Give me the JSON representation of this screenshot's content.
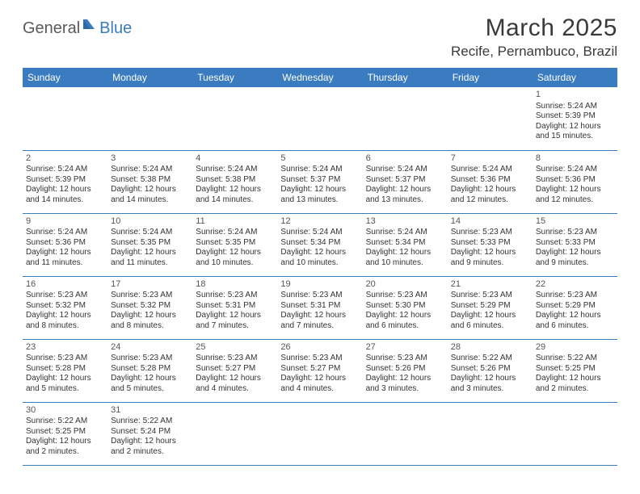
{
  "brand": {
    "part1": "General",
    "part2": "Blue"
  },
  "title": "March 2025",
  "location": "Recife, Pernambuco, Brazil",
  "colors": {
    "header_bg": "#3b7bbf",
    "header_text": "#ffffff",
    "border": "#3b7bbf",
    "body_text": "#333333",
    "title_text": "#3a3a3a",
    "brand_gray": "#5a5a5a",
    "brand_blue": "#3b7bbf",
    "background": "#ffffff"
  },
  "typography": {
    "title_fontsize": 30,
    "location_fontsize": 17,
    "header_fontsize": 12,
    "cell_fontsize": 10
  },
  "columns": [
    "Sunday",
    "Monday",
    "Tuesday",
    "Wednesday",
    "Thursday",
    "Friday",
    "Saturday"
  ],
  "weeks": [
    [
      null,
      null,
      null,
      null,
      null,
      null,
      {
        "n": "1",
        "sr": "Sunrise: 5:24 AM",
        "ss": "Sunset: 5:39 PM",
        "d1": "Daylight: 12 hours",
        "d2": "and 15 minutes."
      }
    ],
    [
      {
        "n": "2",
        "sr": "Sunrise: 5:24 AM",
        "ss": "Sunset: 5:39 PM",
        "d1": "Daylight: 12 hours",
        "d2": "and 14 minutes."
      },
      {
        "n": "3",
        "sr": "Sunrise: 5:24 AM",
        "ss": "Sunset: 5:38 PM",
        "d1": "Daylight: 12 hours",
        "d2": "and 14 minutes."
      },
      {
        "n": "4",
        "sr": "Sunrise: 5:24 AM",
        "ss": "Sunset: 5:38 PM",
        "d1": "Daylight: 12 hours",
        "d2": "and 14 minutes."
      },
      {
        "n": "5",
        "sr": "Sunrise: 5:24 AM",
        "ss": "Sunset: 5:37 PM",
        "d1": "Daylight: 12 hours",
        "d2": "and 13 minutes."
      },
      {
        "n": "6",
        "sr": "Sunrise: 5:24 AM",
        "ss": "Sunset: 5:37 PM",
        "d1": "Daylight: 12 hours",
        "d2": "and 13 minutes."
      },
      {
        "n": "7",
        "sr": "Sunrise: 5:24 AM",
        "ss": "Sunset: 5:36 PM",
        "d1": "Daylight: 12 hours",
        "d2": "and 12 minutes."
      },
      {
        "n": "8",
        "sr": "Sunrise: 5:24 AM",
        "ss": "Sunset: 5:36 PM",
        "d1": "Daylight: 12 hours",
        "d2": "and 12 minutes."
      }
    ],
    [
      {
        "n": "9",
        "sr": "Sunrise: 5:24 AM",
        "ss": "Sunset: 5:36 PM",
        "d1": "Daylight: 12 hours",
        "d2": "and 11 minutes."
      },
      {
        "n": "10",
        "sr": "Sunrise: 5:24 AM",
        "ss": "Sunset: 5:35 PM",
        "d1": "Daylight: 12 hours",
        "d2": "and 11 minutes."
      },
      {
        "n": "11",
        "sr": "Sunrise: 5:24 AM",
        "ss": "Sunset: 5:35 PM",
        "d1": "Daylight: 12 hours",
        "d2": "and 10 minutes."
      },
      {
        "n": "12",
        "sr": "Sunrise: 5:24 AM",
        "ss": "Sunset: 5:34 PM",
        "d1": "Daylight: 12 hours",
        "d2": "and 10 minutes."
      },
      {
        "n": "13",
        "sr": "Sunrise: 5:24 AM",
        "ss": "Sunset: 5:34 PM",
        "d1": "Daylight: 12 hours",
        "d2": "and 10 minutes."
      },
      {
        "n": "14",
        "sr": "Sunrise: 5:23 AM",
        "ss": "Sunset: 5:33 PM",
        "d1": "Daylight: 12 hours",
        "d2": "and 9 minutes."
      },
      {
        "n": "15",
        "sr": "Sunrise: 5:23 AM",
        "ss": "Sunset: 5:33 PM",
        "d1": "Daylight: 12 hours",
        "d2": "and 9 minutes."
      }
    ],
    [
      {
        "n": "16",
        "sr": "Sunrise: 5:23 AM",
        "ss": "Sunset: 5:32 PM",
        "d1": "Daylight: 12 hours",
        "d2": "and 8 minutes."
      },
      {
        "n": "17",
        "sr": "Sunrise: 5:23 AM",
        "ss": "Sunset: 5:32 PM",
        "d1": "Daylight: 12 hours",
        "d2": "and 8 minutes."
      },
      {
        "n": "18",
        "sr": "Sunrise: 5:23 AM",
        "ss": "Sunset: 5:31 PM",
        "d1": "Daylight: 12 hours",
        "d2": "and 7 minutes."
      },
      {
        "n": "19",
        "sr": "Sunrise: 5:23 AM",
        "ss": "Sunset: 5:31 PM",
        "d1": "Daylight: 12 hours",
        "d2": "and 7 minutes."
      },
      {
        "n": "20",
        "sr": "Sunrise: 5:23 AM",
        "ss": "Sunset: 5:30 PM",
        "d1": "Daylight: 12 hours",
        "d2": "and 6 minutes."
      },
      {
        "n": "21",
        "sr": "Sunrise: 5:23 AM",
        "ss": "Sunset: 5:29 PM",
        "d1": "Daylight: 12 hours",
        "d2": "and 6 minutes."
      },
      {
        "n": "22",
        "sr": "Sunrise: 5:23 AM",
        "ss": "Sunset: 5:29 PM",
        "d1": "Daylight: 12 hours",
        "d2": "and 6 minutes."
      }
    ],
    [
      {
        "n": "23",
        "sr": "Sunrise: 5:23 AM",
        "ss": "Sunset: 5:28 PM",
        "d1": "Daylight: 12 hours",
        "d2": "and 5 minutes."
      },
      {
        "n": "24",
        "sr": "Sunrise: 5:23 AM",
        "ss": "Sunset: 5:28 PM",
        "d1": "Daylight: 12 hours",
        "d2": "and 5 minutes."
      },
      {
        "n": "25",
        "sr": "Sunrise: 5:23 AM",
        "ss": "Sunset: 5:27 PM",
        "d1": "Daylight: 12 hours",
        "d2": "and 4 minutes."
      },
      {
        "n": "26",
        "sr": "Sunrise: 5:23 AM",
        "ss": "Sunset: 5:27 PM",
        "d1": "Daylight: 12 hours",
        "d2": "and 4 minutes."
      },
      {
        "n": "27",
        "sr": "Sunrise: 5:23 AM",
        "ss": "Sunset: 5:26 PM",
        "d1": "Daylight: 12 hours",
        "d2": "and 3 minutes."
      },
      {
        "n": "28",
        "sr": "Sunrise: 5:22 AM",
        "ss": "Sunset: 5:26 PM",
        "d1": "Daylight: 12 hours",
        "d2": "and 3 minutes."
      },
      {
        "n": "29",
        "sr": "Sunrise: 5:22 AM",
        "ss": "Sunset: 5:25 PM",
        "d1": "Daylight: 12 hours",
        "d2": "and 2 minutes."
      }
    ],
    [
      {
        "n": "30",
        "sr": "Sunrise: 5:22 AM",
        "ss": "Sunset: 5:25 PM",
        "d1": "Daylight: 12 hours",
        "d2": "and 2 minutes."
      },
      {
        "n": "31",
        "sr": "Sunrise: 5:22 AM",
        "ss": "Sunset: 5:24 PM",
        "d1": "Daylight: 12 hours",
        "d2": "and 2 minutes."
      },
      null,
      null,
      null,
      null,
      null
    ]
  ]
}
